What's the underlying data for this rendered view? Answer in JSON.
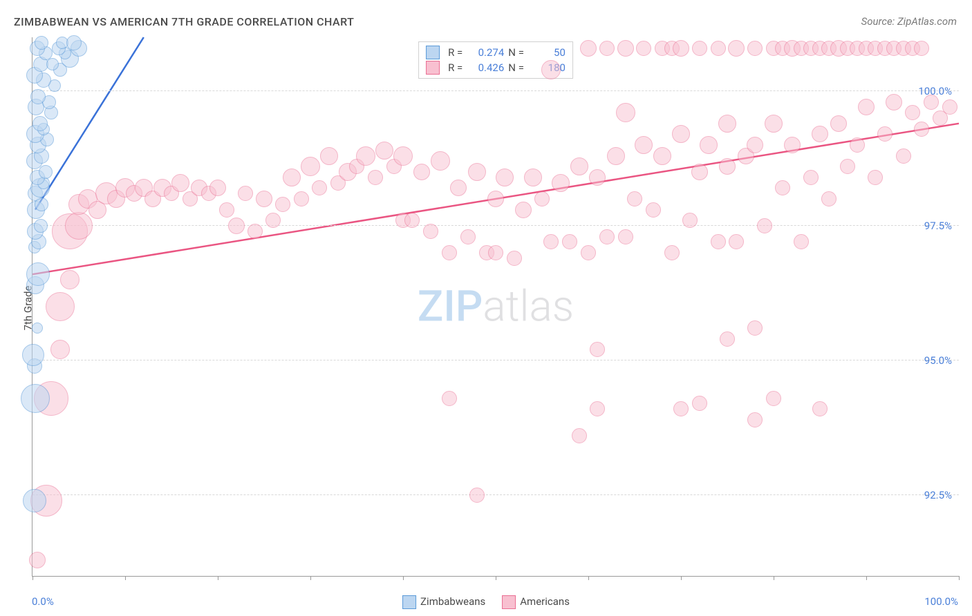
{
  "chart": {
    "type": "scatter",
    "title": "ZIMBABWEAN VS AMERICAN 7TH GRADE CORRELATION CHART",
    "source": "Source: ZipAtlas.com",
    "ylabel": "7th Grade",
    "watermark_zip": "ZIP",
    "watermark_atlas": "atlas",
    "xlim": [
      0,
      100
    ],
    "ylim": [
      91,
      101
    ],
    "x_ticks": [
      0,
      10,
      20,
      30,
      40,
      50,
      60,
      70,
      80,
      90,
      100
    ],
    "x_percent_labels": {
      "min": "0.0%",
      "max": "100.0%"
    },
    "y_grid": [
      {
        "val": 100.0,
        "label": "100.0%"
      },
      {
        "val": 97.5,
        "label": "97.5%"
      },
      {
        "val": 95.0,
        "label": "95.0%"
      },
      {
        "val": 92.5,
        "label": "92.5%"
      }
    ],
    "background_color": "#ffffff",
    "grid_color": "#d8d8d8",
    "axis_color": "#9a9a9a",
    "tick_label_color": "#4a7fd8",
    "series": {
      "zimbabweans": {
        "label": "Zimbabweans",
        "fill": "#bcd6f1",
        "stroke": "#5b9ad8",
        "fill_opacity": 0.55,
        "trend_color": "#3a72d8",
        "trend_width": 2.5,
        "R": "0.274",
        "N": "50",
        "trend_line": {
          "x1": 0.3,
          "y1": 97.8,
          "x2": 12,
          "y2": 101
        },
        "points": [
          {
            "x": 0.2,
            "y": 92.4,
            "r": 16
          },
          {
            "x": 0.3,
            "y": 94.3,
            "r": 20
          },
          {
            "x": 0.2,
            "y": 94.9,
            "r": 10
          },
          {
            "x": 0.1,
            "y": 95.1,
            "r": 15
          },
          {
            "x": 0.5,
            "y": 95.6,
            "r": 7
          },
          {
            "x": 0.3,
            "y": 96.4,
            "r": 12
          },
          {
            "x": 0.6,
            "y": 96.6,
            "r": 16
          },
          {
            "x": 0.2,
            "y": 97.1,
            "r": 8
          },
          {
            "x": 0.7,
            "y": 97.2,
            "r": 10
          },
          {
            "x": 0.3,
            "y": 97.4,
            "r": 11
          },
          {
            "x": 0.9,
            "y": 97.5,
            "r": 9
          },
          {
            "x": 0.4,
            "y": 97.8,
            "r": 12
          },
          {
            "x": 1.0,
            "y": 97.9,
            "r": 9
          },
          {
            "x": 0.3,
            "y": 98.1,
            "r": 10
          },
          {
            "x": 0.8,
            "y": 98.2,
            "r": 13
          },
          {
            "x": 1.2,
            "y": 98.3,
            "r": 8
          },
          {
            "x": 0.5,
            "y": 98.4,
            "r": 10
          },
          {
            "x": 1.4,
            "y": 98.5,
            "r": 9
          },
          {
            "x": 0.2,
            "y": 98.7,
            "r": 11
          },
          {
            "x": 1.0,
            "y": 98.8,
            "r": 10
          },
          {
            "x": 0.6,
            "y": 99.0,
            "r": 11
          },
          {
            "x": 1.6,
            "y": 99.1,
            "r": 9
          },
          {
            "x": 0.3,
            "y": 99.2,
            "r": 12
          },
          {
            "x": 1.2,
            "y": 99.3,
            "r": 8
          },
          {
            "x": 0.8,
            "y": 99.4,
            "r": 10
          },
          {
            "x": 2.0,
            "y": 99.6,
            "r": 9
          },
          {
            "x": 0.4,
            "y": 99.7,
            "r": 11
          },
          {
            "x": 1.8,
            "y": 99.8,
            "r": 9
          },
          {
            "x": 0.6,
            "y": 99.9,
            "r": 10
          },
          {
            "x": 2.4,
            "y": 100.1,
            "r": 8
          },
          {
            "x": 1.2,
            "y": 100.2,
            "r": 10
          },
          {
            "x": 0.2,
            "y": 100.3,
            "r": 11
          },
          {
            "x": 3.0,
            "y": 100.4,
            "r": 9
          },
          {
            "x": 0.9,
            "y": 100.5,
            "r": 10
          },
          {
            "x": 2.2,
            "y": 100.5,
            "r": 8
          },
          {
            "x": 4.0,
            "y": 100.6,
            "r": 12
          },
          {
            "x": 1.4,
            "y": 100.7,
            "r": 9
          },
          {
            "x": 3.5,
            "y": 100.7,
            "r": 8
          },
          {
            "x": 0.5,
            "y": 100.8,
            "r": 10
          },
          {
            "x": 2.8,
            "y": 100.8,
            "r": 9
          },
          {
            "x": 5.0,
            "y": 100.8,
            "r": 11
          },
          {
            "x": 1.0,
            "y": 100.9,
            "r": 9
          },
          {
            "x": 3.2,
            "y": 100.9,
            "r": 8
          },
          {
            "x": 4.5,
            "y": 100.9,
            "r": 10
          }
        ]
      },
      "americans": {
        "label": "Americans",
        "fill": "#f8c0d0",
        "stroke": "#ea6e92",
        "fill_opacity": 0.5,
        "trend_color": "#ea5582",
        "trend_width": 2.5,
        "R": "0.426",
        "N": "180",
        "trend_line": {
          "x1": 0,
          "y1": 96.6,
          "x2": 100,
          "y2": 99.4
        },
        "points": [
          {
            "x": 0.5,
            "y": 91.3,
            "r": 11
          },
          {
            "x": 1.5,
            "y": 92.4,
            "r": 22
          },
          {
            "x": 2.0,
            "y": 94.3,
            "r": 24
          },
          {
            "x": 48,
            "y": 92.5,
            "r": 10
          },
          {
            "x": 59,
            "y": 93.6,
            "r": 10
          },
          {
            "x": 61,
            "y": 94.1,
            "r": 10
          },
          {
            "x": 70,
            "y": 94.1,
            "r": 10
          },
          {
            "x": 45,
            "y": 94.3,
            "r": 10
          },
          {
            "x": 78,
            "y": 93.9,
            "r": 10
          },
          {
            "x": 72,
            "y": 94.2,
            "r": 10
          },
          {
            "x": 80,
            "y": 94.3,
            "r": 10
          },
          {
            "x": 85,
            "y": 94.1,
            "r": 10
          },
          {
            "x": 3,
            "y": 95.2,
            "r": 13
          },
          {
            "x": 3,
            "y": 96.0,
            "r": 20
          },
          {
            "x": 4,
            "y": 97.4,
            "r": 25
          },
          {
            "x": 5,
            "y": 97.5,
            "r": 19
          },
          {
            "x": 4,
            "y": 96.5,
            "r": 13
          },
          {
            "x": 61,
            "y": 95.2,
            "r": 10
          },
          {
            "x": 75,
            "y": 95.4,
            "r": 10
          },
          {
            "x": 5,
            "y": 97.9,
            "r": 14
          },
          {
            "x": 6,
            "y": 98.0,
            "r": 13
          },
          {
            "x": 7,
            "y": 97.8,
            "r": 12
          },
          {
            "x": 8,
            "y": 98.1,
            "r": 15
          },
          {
            "x": 9,
            "y": 98.0,
            "r": 12
          },
          {
            "x": 10,
            "y": 98.2,
            "r": 13
          },
          {
            "x": 11,
            "y": 98.1,
            "r": 11
          },
          {
            "x": 12,
            "y": 98.2,
            "r": 12
          },
          {
            "x": 13,
            "y": 98.0,
            "r": 11
          },
          {
            "x": 14,
            "y": 98.2,
            "r": 12
          },
          {
            "x": 15,
            "y": 98.1,
            "r": 10
          },
          {
            "x": 16,
            "y": 98.3,
            "r": 12
          },
          {
            "x": 17,
            "y": 98.0,
            "r": 10
          },
          {
            "x": 18,
            "y": 98.2,
            "r": 11
          },
          {
            "x": 19,
            "y": 98.1,
            "r": 10
          },
          {
            "x": 20,
            "y": 98.2,
            "r": 11
          },
          {
            "x": 21,
            "y": 97.8,
            "r": 10
          },
          {
            "x": 22,
            "y": 97.5,
            "r": 11
          },
          {
            "x": 23,
            "y": 98.1,
            "r": 10
          },
          {
            "x": 24,
            "y": 97.4,
            "r": 10
          },
          {
            "x": 25,
            "y": 98.0,
            "r": 11
          },
          {
            "x": 26,
            "y": 97.6,
            "r": 10
          },
          {
            "x": 27,
            "y": 97.9,
            "r": 10
          },
          {
            "x": 28,
            "y": 98.4,
            "r": 12
          },
          {
            "x": 29,
            "y": 98.0,
            "r": 10
          },
          {
            "x": 30,
            "y": 98.6,
            "r": 13
          },
          {
            "x": 31,
            "y": 98.2,
            "r": 10
          },
          {
            "x": 32,
            "y": 98.8,
            "r": 12
          },
          {
            "x": 33,
            "y": 98.3,
            "r": 10
          },
          {
            "x": 34,
            "y": 98.5,
            "r": 12
          },
          {
            "x": 35,
            "y": 98.6,
            "r": 10
          },
          {
            "x": 36,
            "y": 98.8,
            "r": 13
          },
          {
            "x": 37,
            "y": 98.4,
            "r": 10
          },
          {
            "x": 38,
            "y": 98.9,
            "r": 12
          },
          {
            "x": 39,
            "y": 98.6,
            "r": 10
          },
          {
            "x": 40,
            "y": 98.8,
            "r": 13
          },
          {
            "x": 40,
            "y": 97.6,
            "r": 10
          },
          {
            "x": 41,
            "y": 97.6,
            "r": 10
          },
          {
            "x": 42,
            "y": 98.5,
            "r": 11
          },
          {
            "x": 43,
            "y": 97.4,
            "r": 10
          },
          {
            "x": 44,
            "y": 98.7,
            "r": 13
          },
          {
            "x": 45,
            "y": 97.0,
            "r": 10
          },
          {
            "x": 46,
            "y": 98.2,
            "r": 11
          },
          {
            "x": 47,
            "y": 97.3,
            "r": 10
          },
          {
            "x": 48,
            "y": 98.5,
            "r": 12
          },
          {
            "x": 49,
            "y": 97.0,
            "r": 10
          },
          {
            "x": 50,
            "y": 98.0,
            "r": 11
          },
          {
            "x": 50,
            "y": 97.0,
            "r": 10
          },
          {
            "x": 51,
            "y": 98.4,
            "r": 12
          },
          {
            "x": 52,
            "y": 96.9,
            "r": 10
          },
          {
            "x": 53,
            "y": 97.8,
            "r": 11
          },
          {
            "x": 54,
            "y": 98.4,
            "r": 12
          },
          {
            "x": 55,
            "y": 98.0,
            "r": 10
          },
          {
            "x": 56,
            "y": 97.2,
            "r": 10
          },
          {
            "x": 57,
            "y": 98.3,
            "r": 12
          },
          {
            "x": 58,
            "y": 97.2,
            "r": 10
          },
          {
            "x": 59,
            "y": 98.6,
            "r": 12
          },
          {
            "x": 60,
            "y": 97.0,
            "r": 10
          },
          {
            "x": 61,
            "y": 98.4,
            "r": 11
          },
          {
            "x": 62,
            "y": 97.3,
            "r": 10
          },
          {
            "x": 63,
            "y": 98.8,
            "r": 12
          },
          {
            "x": 64,
            "y": 97.3,
            "r": 10
          },
          {
            "x": 64,
            "y": 99.6,
            "r": 13
          },
          {
            "x": 65,
            "y": 98.0,
            "r": 10
          },
          {
            "x": 66,
            "y": 99.0,
            "r": 12
          },
          {
            "x": 67,
            "y": 97.8,
            "r": 10
          },
          {
            "x": 68,
            "y": 98.8,
            "r": 12
          },
          {
            "x": 69,
            "y": 97.0,
            "r": 10
          },
          {
            "x": 70,
            "y": 99.2,
            "r": 12
          },
          {
            "x": 71,
            "y": 97.6,
            "r": 10
          },
          {
            "x": 72,
            "y": 98.5,
            "r": 11
          },
          {
            "x": 73,
            "y": 99.0,
            "r": 12
          },
          {
            "x": 74,
            "y": 97.2,
            "r": 10
          },
          {
            "x": 75,
            "y": 98.6,
            "r": 11
          },
          {
            "x": 75,
            "y": 99.4,
            "r": 12
          },
          {
            "x": 76,
            "y": 97.2,
            "r": 10
          },
          {
            "x": 77,
            "y": 98.8,
            "r": 11
          },
          {
            "x": 78,
            "y": 95.6,
            "r": 10
          },
          {
            "x": 78,
            "y": 99.0,
            "r": 11
          },
          {
            "x": 79,
            "y": 97.5,
            "r": 10
          },
          {
            "x": 80,
            "y": 99.4,
            "r": 12
          },
          {
            "x": 81,
            "y": 98.2,
            "r": 10
          },
          {
            "x": 82,
            "y": 99.0,
            "r": 11
          },
          {
            "x": 83,
            "y": 97.2,
            "r": 10
          },
          {
            "x": 84,
            "y": 98.4,
            "r": 10
          },
          {
            "x": 85,
            "y": 99.2,
            "r": 11
          },
          {
            "x": 56,
            "y": 100.4,
            "r": 13
          },
          {
            "x": 86,
            "y": 98.0,
            "r": 10
          },
          {
            "x": 87,
            "y": 99.4,
            "r": 11
          },
          {
            "x": 88,
            "y": 98.6,
            "r": 10
          },
          {
            "x": 89,
            "y": 99.0,
            "r": 10
          },
          {
            "x": 90,
            "y": 99.7,
            "r": 11
          },
          {
            "x": 91,
            "y": 98.4,
            "r": 10
          },
          {
            "x": 92,
            "y": 99.2,
            "r": 10
          },
          {
            "x": 93,
            "y": 99.8,
            "r": 11
          },
          {
            "x": 94,
            "y": 98.8,
            "r": 10
          },
          {
            "x": 95,
            "y": 99.6,
            "r": 10
          },
          {
            "x": 96,
            "y": 99.3,
            "r": 10
          },
          {
            "x": 97,
            "y": 99.8,
            "r": 10
          },
          {
            "x": 98,
            "y": 99.5,
            "r": 10
          },
          {
            "x": 99,
            "y": 99.7,
            "r": 10
          },
          {
            "x": 60,
            "y": 100.8,
            "r": 11
          },
          {
            "x": 62,
            "y": 100.8,
            "r": 10
          },
          {
            "x": 64,
            "y": 100.8,
            "r": 11
          },
          {
            "x": 66,
            "y": 100.8,
            "r": 10
          },
          {
            "x": 68,
            "y": 100.8,
            "r": 10
          },
          {
            "x": 69,
            "y": 100.8,
            "r": 10
          },
          {
            "x": 70,
            "y": 100.8,
            "r": 11
          },
          {
            "x": 72,
            "y": 100.8,
            "r": 10
          },
          {
            "x": 74,
            "y": 100.8,
            "r": 10
          },
          {
            "x": 76,
            "y": 100.8,
            "r": 11
          },
          {
            "x": 78,
            "y": 100.8,
            "r": 10
          },
          {
            "x": 80,
            "y": 100.8,
            "r": 10
          },
          {
            "x": 81,
            "y": 100.8,
            "r": 10
          },
          {
            "x": 82,
            "y": 100.8,
            "r": 11
          },
          {
            "x": 83,
            "y": 100.8,
            "r": 10
          },
          {
            "x": 84,
            "y": 100.8,
            "r": 10
          },
          {
            "x": 85,
            "y": 100.8,
            "r": 10
          },
          {
            "x": 86,
            "y": 100.8,
            "r": 10
          },
          {
            "x": 87,
            "y": 100.8,
            "r": 11
          },
          {
            "x": 88,
            "y": 100.8,
            "r": 10
          },
          {
            "x": 89,
            "y": 100.8,
            "r": 10
          },
          {
            "x": 90,
            "y": 100.8,
            "r": 10
          },
          {
            "x": 91,
            "y": 100.8,
            "r": 10
          },
          {
            "x": 92,
            "y": 100.8,
            "r": 10
          },
          {
            "x": 93,
            "y": 100.8,
            "r": 10
          },
          {
            "x": 94,
            "y": 100.8,
            "r": 10
          },
          {
            "x": 95,
            "y": 100.8,
            "r": 10
          },
          {
            "x": 96,
            "y": 100.8,
            "r": 10
          }
        ]
      }
    },
    "legend_label_R": "R  =",
    "legend_label_N": "N  ="
  }
}
